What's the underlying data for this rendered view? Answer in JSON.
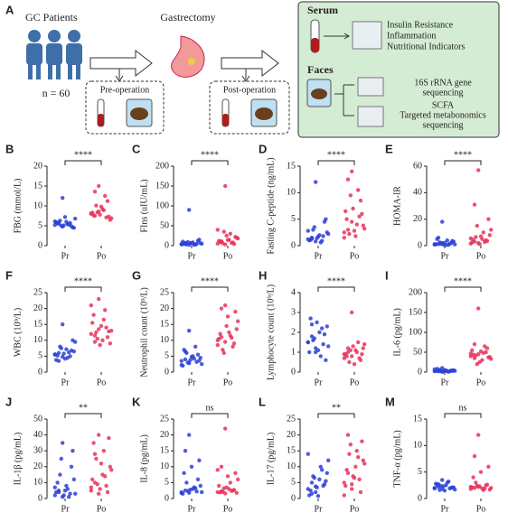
{
  "diagram": {
    "label": "A",
    "patients": "GC Patients",
    "n": "n = 60",
    "surgery": "Gastrectomy",
    "pre": "Pre-operation",
    "post": "Post-operation",
    "serum": "Serum",
    "serum_tests": [
      "Insulin Resistance",
      "Inflammation",
      "Nutritional Indicators"
    ],
    "faeces": "Faces",
    "sequencing_16s": [
      "16S rRNA gene",
      "sequencing"
    ],
    "scfa": [
      "SCFA",
      "Targeted metabonomics",
      "sequencing"
    ]
  },
  "chart_data": [
    {
      "type": "strip",
      "panel": "B",
      "ylabel": "FBG (mmol/L)",
      "categories": [
        "Pr",
        "Po"
      ],
      "significance": "****",
      "ylim": [
        0,
        20
      ],
      "yticks": [
        0,
        5,
        10,
        15,
        20
      ],
      "series": [
        {
          "color": "#2b3fd6",
          "values": [
            5.2,
            5.5,
            4.8,
            6.0,
            5.7,
            4.5,
            5.9,
            6.3,
            5.1,
            5.4,
            4.9,
            6.8,
            5.6,
            5.0,
            7.2,
            5.3,
            4.6,
            6.1,
            5.8,
            12.0
          ]
        },
        {
          "color": "#e8335a",
          "values": [
            8.0,
            7.5,
            8.6,
            9.2,
            7.1,
            6.5,
            8.3,
            10.1,
            7.8,
            8.9,
            11.2,
            6.9,
            7.6,
            8.4,
            9.8,
            12.5,
            7.3,
            8.1,
            13.6,
            15.0
          ]
        }
      ]
    },
    {
      "type": "strip",
      "panel": "C",
      "ylabel": "FIns (uIU/mL)",
      "categories": [
        "Pr",
        "Po"
      ],
      "significance": "****",
      "ylim": [
        0,
        200
      ],
      "yticks": [
        0,
        50,
        100,
        150,
        200
      ],
      "series": [
        {
          "color": "#2b3fd6",
          "values": [
            3,
            5,
            2,
            8,
            4,
            6,
            10,
            3,
            7,
            2,
            12,
            5,
            4,
            9,
            6,
            3,
            15,
            4,
            7,
            90
          ]
        },
        {
          "color": "#e8335a",
          "values": [
            5,
            10,
            3,
            15,
            8,
            20,
            12,
            6,
            25,
            30,
            4,
            18,
            9,
            35,
            14,
            7,
            22,
            40,
            11,
            150
          ]
        }
      ]
    },
    {
      "type": "strip",
      "panel": "D",
      "ylabel": "Fasting C-peptide (ng/mL)",
      "categories": [
        "Pr",
        "Po"
      ],
      "significance": "****",
      "ylim": [
        0,
        15
      ],
      "yticks": [
        0,
        5,
        10,
        15
      ],
      "series": [
        {
          "color": "#2b3fd6",
          "values": [
            1.2,
            1.5,
            0.8,
            2.0,
            1.8,
            2.5,
            1.0,
            3.0,
            1.4,
            0.6,
            4.5,
            2.2,
            1.1,
            3.5,
            1.7,
            0.9,
            5.0,
            2.8,
            1.3,
            12.0
          ]
        },
        {
          "color": "#e8335a",
          "values": [
            2.5,
            3.0,
            4.5,
            1.8,
            5.5,
            3.8,
            6.5,
            2.2,
            7.0,
            4.0,
            8.5,
            3.2,
            5.0,
            9.5,
            2.8,
            10.5,
            6.0,
            1.5,
            12.5,
            14.0
          ]
        }
      ]
    },
    {
      "type": "strip",
      "panel": "E",
      "ylabel": "HOMA-IR",
      "categories": [
        "Pr",
        "Po"
      ],
      "significance": "****",
      "ylim": [
        0,
        60
      ],
      "yticks": [
        0,
        20,
        40,
        60
      ],
      "series": [
        {
          "color": "#2b3fd6",
          "values": [
            0.8,
            1.2,
            2.0,
            0.5,
            1.5,
            3.0,
            1.0,
            2.5,
            0.7,
            4.0,
            1.8,
            0.9,
            5.0,
            1.3,
            2.2,
            0.6,
            3.5,
            1.1,
            6.0,
            18.0
          ]
        },
        {
          "color": "#e8335a",
          "values": [
            1.5,
            3.0,
            2.0,
            5.0,
            4.0,
            8.0,
            2.5,
            6.5,
            1.2,
            10.0,
            3.5,
            12.0,
            4.5,
            15.0,
            7.0,
            2.8,
            20.0,
            5.5,
            31.0,
            57.0
          ]
        }
      ]
    },
    {
      "type": "strip",
      "panel": "F",
      "ylabel": "WBC (10⁹/L)",
      "categories": [
        "Pr",
        "Po"
      ],
      "significance": "****",
      "ylim": [
        0,
        25
      ],
      "yticks": [
        0,
        5,
        10,
        15,
        20,
        25
      ],
      "series": [
        {
          "color": "#2b3fd6",
          "values": [
            5.5,
            6.0,
            4.8,
            7.2,
            5.0,
            6.5,
            3.8,
            8.0,
            5.8,
            4.5,
            6.8,
            9.5,
            5.2,
            7.5,
            4.2,
            6.2,
            10.0,
            5.6,
            3.5,
            15.0
          ]
        },
        {
          "color": "#e8335a",
          "values": [
            12.0,
            11.5,
            13.5,
            10.0,
            14.0,
            9.0,
            15.5,
            12.5,
            8.5,
            16.5,
            11.0,
            13.0,
            18.0,
            10.5,
            14.5,
            19.5,
            12.8,
            21.0,
            9.5,
            23.0
          ]
        }
      ]
    },
    {
      "type": "strip",
      "panel": "G",
      "ylabel": "Neutrophil count (10⁹/L)",
      "categories": [
        "Pr",
        "Po"
      ],
      "significance": "****",
      "ylim": [
        0,
        25
      ],
      "yticks": [
        0,
        5,
        10,
        15,
        20,
        25
      ],
      "series": [
        {
          "color": "#2b3fd6",
          "values": [
            3.5,
            4.0,
            2.8,
            5.0,
            3.2,
            4.5,
            2.0,
            6.0,
            3.8,
            4.2,
            5.5,
            2.5,
            7.0,
            3.0,
            4.8,
            8.0,
            3.6,
            2.2,
            6.5,
            13.0
          ]
        },
        {
          "color": "#e8335a",
          "values": [
            10.0,
            11.0,
            9.5,
            12.5,
            8.0,
            13.5,
            10.5,
            7.0,
            14.5,
            11.5,
            9.0,
            16.0,
            12.0,
            6.0,
            17.5,
            10.8,
            19.0,
            8.5,
            20.0,
            21.0
          ]
        }
      ]
    },
    {
      "type": "strip",
      "panel": "H",
      "ylabel": "Lymphocyte count (10⁹/L)",
      "categories": [
        "Pr",
        "Po"
      ],
      "significance": "****",
      "ylim": [
        0,
        4
      ],
      "yticks": [
        0,
        1,
        2,
        3,
        4
      ],
      "series": [
        {
          "color": "#2b3fd6",
          "values": [
            1.5,
            1.8,
            1.2,
            2.0,
            1.4,
            2.3,
            1.0,
            1.6,
            2.5,
            0.8,
            1.9,
            1.3,
            2.7,
            1.7,
            1.1,
            2.2,
            0.6,
            1.5,
            2.4,
            1.0
          ]
        },
        {
          "color": "#e8335a",
          "values": [
            0.9,
            1.0,
            0.8,
            1.1,
            0.7,
            1.2,
            0.9,
            0.5,
            1.3,
            1.0,
            0.6,
            1.4,
            0.8,
            1.1,
            0.4,
            1.5,
            0.9,
            0.7,
            1.2,
            3.0
          ]
        }
      ]
    },
    {
      "type": "strip",
      "panel": "I",
      "ylabel": "IL-6 (pg/mL)",
      "categories": [
        "Pr",
        "Po"
      ],
      "significance": "****",
      "ylim": [
        0,
        200
      ],
      "yticks": [
        0,
        50,
        100,
        150,
        200
      ],
      "series": [
        {
          "color": "#2b3fd6",
          "values": [
            2,
            3,
            1,
            4,
            2,
            5,
            3,
            6,
            1,
            2,
            4,
            3,
            8,
            2,
            5,
            1,
            3,
            7,
            2,
            10
          ]
        },
        {
          "color": "#e8335a",
          "values": [
            40,
            35,
            45,
            30,
            50,
            38,
            55,
            42,
            25,
            48,
            60,
            33,
            44,
            20,
            52,
            65,
            37,
            47,
            70,
            160
          ]
        }
      ]
    },
    {
      "type": "strip",
      "panel": "J",
      "ylabel": "IL-1β (pg/mL)",
      "categories": [
        "Pr",
        "Po"
      ],
      "significance": "**",
      "ylim": [
        0,
        50
      ],
      "yticks": [
        0,
        10,
        20,
        30,
        40,
        50
      ],
      "series": [
        {
          "color": "#2b3fd6",
          "values": [
            2,
            5,
            1,
            8,
            3,
            12,
            4,
            15,
            2,
            6,
            20,
            3,
            10,
            25,
            5,
            1,
            30,
            7,
            4,
            35
          ]
        },
        {
          "color": "#e8335a",
          "values": [
            5,
            10,
            3,
            15,
            8,
            20,
            12,
            25,
            6,
            30,
            4,
            18,
            35,
            9,
            22,
            14,
            38,
            7,
            28,
            40
          ]
        }
      ]
    },
    {
      "type": "strip",
      "panel": "K",
      "ylabel": "IL-8 (pg/mL)",
      "categories": [
        "Pr",
        "Po"
      ],
      "significance": "ns",
      "ylim": [
        0,
        25
      ],
      "yticks": [
        0,
        5,
        10,
        15,
        20,
        25
      ],
      "series": [
        {
          "color": "#2b3fd6",
          "values": [
            2,
            2.5,
            1.8,
            3,
            2.2,
            4,
            1.5,
            5,
            2.8,
            3.5,
            6,
            2,
            8,
            2.4,
            10,
            3.2,
            12,
            1.7,
            15,
            20
          ]
        },
        {
          "color": "#e8335a",
          "values": [
            2,
            2.3,
            1.6,
            3,
            2.5,
            1.8,
            4,
            2.1,
            3.5,
            5,
            2.7,
            6,
            1.9,
            3.2,
            7,
            2.4,
            8,
            9,
            10,
            22
          ]
        }
      ]
    },
    {
      "type": "strip",
      "panel": "L",
      "ylabel": "IL-17 (pg/mL)",
      "categories": [
        "Pr",
        "Po"
      ],
      "significance": "**",
      "ylim": [
        0,
        25
      ],
      "yticks": [
        0,
        5,
        10,
        15,
        20,
        25
      ],
      "series": [
        {
          "color": "#2b3fd6",
          "values": [
            3,
            5,
            2,
            6,
            4,
            8,
            1,
            7,
            3.5,
            10,
            4.5,
            12,
            2.5,
            6.5,
            0.8,
            9,
            5.5,
            14,
            1.5,
            3.8
          ]
        },
        {
          "color": "#e8335a",
          "values": [
            5,
            8,
            3,
            10,
            6,
            12,
            4,
            14,
            7,
            15,
            2,
            11,
            9,
            17,
            6.5,
            13,
            18,
            1,
            20,
            4.5
          ]
        }
      ]
    },
    {
      "type": "strip",
      "panel": "M",
      "ylabel": "TNF-α (pg/mL)",
      "categories": [
        "Pr",
        "Po"
      ],
      "significance": "ns",
      "ylim": [
        0,
        15
      ],
      "yticks": [
        0,
        5,
        10,
        15
      ],
      "series": [
        {
          "color": "#2b3fd6",
          "values": [
            2,
            2.2,
            1.8,
            2.5,
            1.9,
            2.1,
            2.8,
            1.6,
            2.3,
            3,
            2,
            1.7,
            2.6,
            2.4,
            1.5,
            3.2,
            2.1,
            1.9,
            2.7,
            3.5
          ]
        },
        {
          "color": "#e8335a",
          "values": [
            1.8,
            2,
            2.2,
            1.9,
            2.5,
            1.7,
            2.1,
            3,
            2.3,
            1.6,
            2.6,
            2,
            4,
            2.4,
            5,
            1.9,
            6,
            2.2,
            8,
            12
          ]
        }
      ]
    }
  ]
}
